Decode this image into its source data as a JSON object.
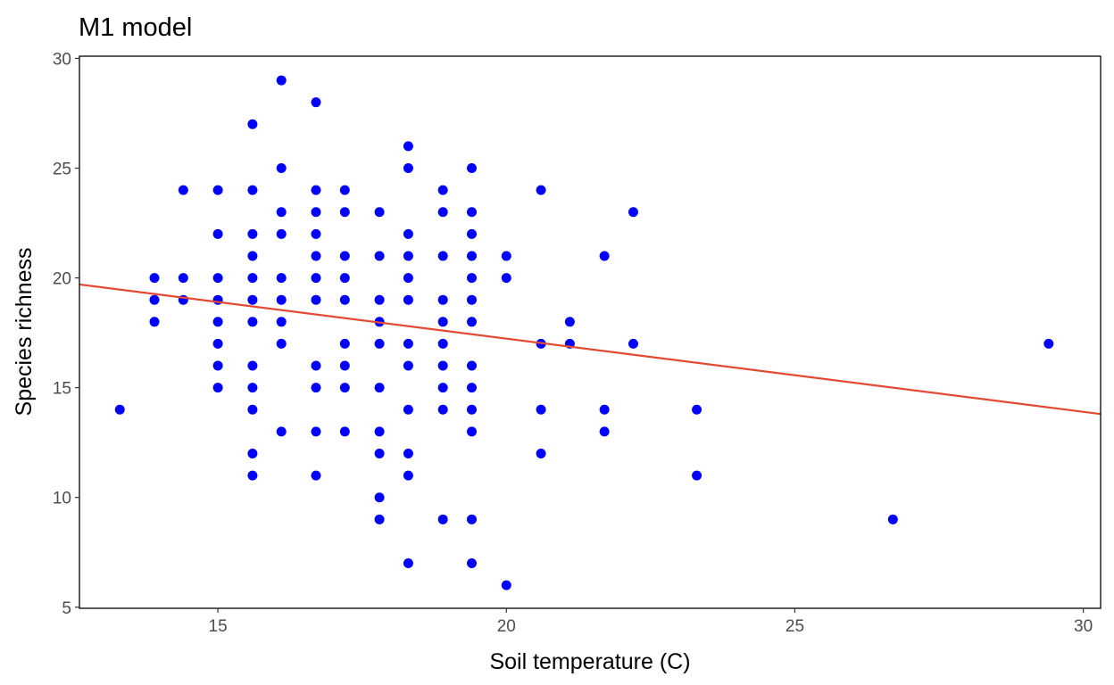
{
  "chart_data": {
    "type": "scatter",
    "title": "M1 model",
    "xlabel": "Soil temperature (C)",
    "ylabel": "Species richness",
    "xlim": [
      12.6,
      30.3
    ],
    "ylim": [
      4.95,
      30.1
    ],
    "xticks": [
      15,
      20,
      25,
      30
    ],
    "yticks": [
      5,
      10,
      15,
      20,
      25,
      30
    ],
    "x_tick_labels": [
      "15",
      "20",
      "25",
      "30"
    ],
    "y_tick_labels": [
      "5",
      "10",
      "15",
      "20",
      "25",
      "30"
    ],
    "grid": false,
    "point_color": "#0000ff",
    "line_color": "#e34a33",
    "fit_line": {
      "x": [
        12.6,
        30.3
      ],
      "y": [
        19.7,
        13.8
      ]
    },
    "points": [
      [
        13.3,
        14
      ],
      [
        13.9,
        20
      ],
      [
        13.9,
        19
      ],
      [
        13.9,
        18
      ],
      [
        14.4,
        24
      ],
      [
        14.4,
        20
      ],
      [
        14.4,
        19
      ],
      [
        15.0,
        24
      ],
      [
        15.0,
        22
      ],
      [
        15.0,
        20
      ],
      [
        15.0,
        19
      ],
      [
        15.0,
        18
      ],
      [
        15.0,
        17
      ],
      [
        15.0,
        16
      ],
      [
        15.0,
        15
      ],
      [
        15.6,
        27
      ],
      [
        15.6,
        24
      ],
      [
        15.6,
        22
      ],
      [
        15.6,
        21
      ],
      [
        15.6,
        20
      ],
      [
        15.6,
        19
      ],
      [
        15.6,
        18
      ],
      [
        15.6,
        16
      ],
      [
        15.6,
        15
      ],
      [
        15.6,
        14
      ],
      [
        15.6,
        12
      ],
      [
        15.6,
        11
      ],
      [
        16.1,
        29
      ],
      [
        16.1,
        25
      ],
      [
        16.1,
        23
      ],
      [
        16.1,
        22
      ],
      [
        16.1,
        20
      ],
      [
        16.1,
        19
      ],
      [
        16.1,
        18
      ],
      [
        16.1,
        17
      ],
      [
        16.1,
        13
      ],
      [
        16.7,
        28
      ],
      [
        16.7,
        24
      ],
      [
        16.7,
        23
      ],
      [
        16.7,
        22
      ],
      [
        16.7,
        21
      ],
      [
        16.7,
        20
      ],
      [
        16.7,
        19
      ],
      [
        16.7,
        16
      ],
      [
        16.7,
        15
      ],
      [
        16.7,
        13
      ],
      [
        16.7,
        11
      ],
      [
        17.2,
        24
      ],
      [
        17.2,
        23
      ],
      [
        17.2,
        21
      ],
      [
        17.2,
        20
      ],
      [
        17.2,
        19
      ],
      [
        17.2,
        17
      ],
      [
        17.2,
        16
      ],
      [
        17.2,
        15
      ],
      [
        17.2,
        13
      ],
      [
        17.8,
        23
      ],
      [
        17.8,
        21
      ],
      [
        17.8,
        19
      ],
      [
        17.8,
        18
      ],
      [
        17.8,
        17
      ],
      [
        17.8,
        15
      ],
      [
        17.8,
        13
      ],
      [
        17.8,
        12
      ],
      [
        17.8,
        10
      ],
      [
        17.8,
        9
      ],
      [
        18.3,
        26
      ],
      [
        18.3,
        25
      ],
      [
        18.3,
        22
      ],
      [
        18.3,
        21
      ],
      [
        18.3,
        20
      ],
      [
        18.3,
        19
      ],
      [
        18.3,
        17
      ],
      [
        18.3,
        16
      ],
      [
        18.3,
        14
      ],
      [
        18.3,
        12
      ],
      [
        18.3,
        11
      ],
      [
        18.3,
        7
      ],
      [
        18.9,
        24
      ],
      [
        18.9,
        23
      ],
      [
        18.9,
        21
      ],
      [
        18.9,
        19
      ],
      [
        18.9,
        18
      ],
      [
        18.9,
        17
      ],
      [
        18.9,
        16
      ],
      [
        18.9,
        15
      ],
      [
        18.9,
        14
      ],
      [
        18.9,
        9
      ],
      [
        19.4,
        25
      ],
      [
        19.4,
        23
      ],
      [
        19.4,
        22
      ],
      [
        19.4,
        21
      ],
      [
        19.4,
        20
      ],
      [
        19.4,
        19
      ],
      [
        19.4,
        18
      ],
      [
        19.4,
        16
      ],
      [
        19.4,
        15
      ],
      [
        19.4,
        14
      ],
      [
        19.4,
        13
      ],
      [
        19.4,
        9
      ],
      [
        19.4,
        7
      ],
      [
        20.0,
        21
      ],
      [
        20.0,
        20
      ],
      [
        20.0,
        6
      ],
      [
        20.6,
        24
      ],
      [
        20.6,
        17
      ],
      [
        20.6,
        14
      ],
      [
        20.6,
        12
      ],
      [
        21.1,
        18
      ],
      [
        21.1,
        17
      ],
      [
        21.7,
        21
      ],
      [
        21.7,
        14
      ],
      [
        21.7,
        13
      ],
      [
        22.2,
        23
      ],
      [
        22.2,
        17
      ],
      [
        23.3,
        14
      ],
      [
        23.3,
        11
      ],
      [
        26.7,
        9
      ],
      [
        29.4,
        17
      ]
    ]
  }
}
